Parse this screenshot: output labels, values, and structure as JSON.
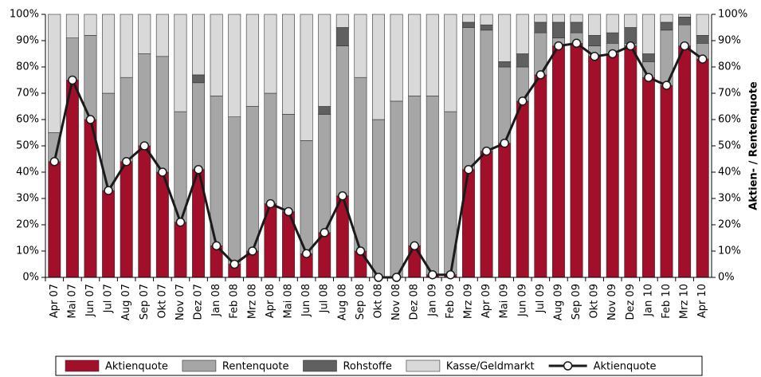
{
  "chart_data": {
    "type": "bar",
    "stacked": true,
    "y2label": "Aktien- / Rentenquote",
    "categories": [
      "Apr 07",
      "Mai 07",
      "Jun 07",
      "Jul 07",
      "Aug 07",
      "Sep 07",
      "Okt 07",
      "Nov 07",
      "Dez 07",
      "Jan 08",
      "Feb 08",
      "Mrz 08",
      "Apr 08",
      "Mai 08",
      "Jun 08",
      "Jul 08",
      "Aug 08",
      "Sep 08",
      "Okt 08",
      "Nov 08",
      "Dez 08",
      "Jan 09",
      "Feb 09",
      "Mrz 09",
      "Apr 09",
      "Mai 09",
      "Jun 09",
      "Jul 09",
      "Aug 09",
      "Sep 09",
      "Okt 09",
      "Nov 09",
      "Dez 09",
      "Jan 10",
      "Feb 10",
      "Mrz 10",
      "Apr 10"
    ],
    "series": [
      {
        "name": "Aktienquote",
        "color": "#a10f2b",
        "values": [
          44,
          75,
          60,
          33,
          44,
          50,
          40,
          21,
          41,
          12,
          5,
          10,
          28,
          25,
          9,
          17,
          31,
          10,
          0,
          0,
          12,
          1,
          1,
          41,
          48,
          51,
          67,
          77,
          88,
          89,
          84,
          85,
          88,
          76,
          73,
          88,
          83
        ]
      },
      {
        "name": "Rentenquote",
        "color": "#a6a6a6",
        "values": [
          11,
          16,
          32,
          37,
          32,
          35,
          44,
          42,
          33,
          57,
          56,
          55,
          42,
          37,
          43,
          45,
          57,
          66,
          60,
          67,
          57,
          68,
          62,
          54,
          46,
          29,
          13,
          16,
          3,
          4,
          4,
          4,
          1,
          6,
          21,
          8,
          6
        ]
      },
      {
        "name": "Rohstoffe",
        "color": "#606060",
        "values": [
          0,
          0,
          0,
          0,
          0,
          0,
          0,
          0,
          3,
          0,
          0,
          0,
          0,
          0,
          0,
          3,
          7,
          0,
          0,
          0,
          0,
          0,
          0,
          2,
          2,
          2,
          5,
          4,
          6,
          4,
          4,
          4,
          6,
          3,
          3,
          3,
          3
        ]
      },
      {
        "name": "Kasse/Geldmarkt",
        "color": "#d9d9d9",
        "values": [
          45,
          9,
          8,
          30,
          24,
          15,
          16,
          37,
          23,
          31,
          39,
          35,
          30,
          38,
          48,
          35,
          5,
          24,
          40,
          33,
          31,
          31,
          37,
          3,
          4,
          18,
          15,
          3,
          3,
          3,
          8,
          7,
          5,
          15,
          3,
          1,
          8
        ]
      },
      {
        "name": "Aktienquote",
        "type": "line",
        "axis": "y2",
        "color": "#1a1a1a",
        "values": [
          44,
          75,
          60,
          33,
          44,
          50,
          40,
          21,
          41,
          12,
          5,
          10,
          28,
          25,
          9,
          17,
          31,
          10,
          0,
          0,
          12,
          1,
          1,
          41,
          48,
          51,
          67,
          77,
          88,
          89,
          84,
          85,
          88,
          76,
          73,
          88,
          83
        ]
      }
    ],
    "ylim": [
      0,
      100
    ],
    "yticks": [
      {
        "value": 0,
        "label": "0%"
      },
      {
        "value": 10,
        "label": "10%"
      },
      {
        "value": 20,
        "label": "20%"
      },
      {
        "value": 30,
        "label": "30%"
      },
      {
        "value": 40,
        "label": "40%"
      },
      {
        "value": 50,
        "label": "50%"
      },
      {
        "value": 60,
        "label": "60%"
      },
      {
        "value": 70,
        "label": "70%"
      },
      {
        "value": 80,
        "label": "80%"
      },
      {
        "value": 90,
        "label": "90%"
      },
      {
        "value": 100,
        "label": "100%"
      }
    ],
    "y2lim": [
      0,
      100
    ],
    "y2ticks": [
      {
        "value": 0,
        "label": "0%"
      },
      {
        "value": 10,
        "label": "10%"
      },
      {
        "value": 20,
        "label": "20%"
      },
      {
        "value": 30,
        "label": "30%"
      },
      {
        "value": 40,
        "label": "40%"
      },
      {
        "value": 50,
        "label": "50%"
      },
      {
        "value": 60,
        "label": "60%"
      },
      {
        "value": 70,
        "label": "70%"
      },
      {
        "value": 80,
        "label": "80%"
      },
      {
        "value": 90,
        "label": "90%"
      },
      {
        "value": 100,
        "label": "100%"
      }
    ],
    "legend": "bottom"
  }
}
